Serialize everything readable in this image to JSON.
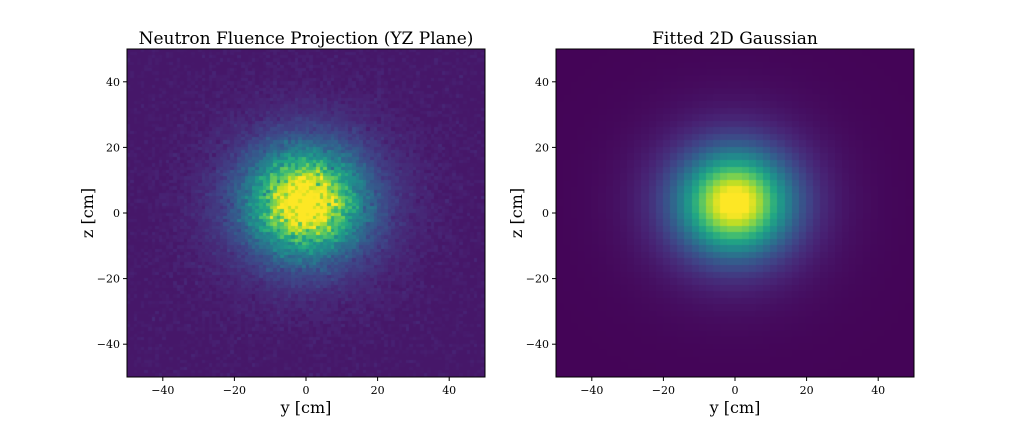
{
  "chart_data": [
    {
      "type": "heatmap",
      "title": "Neutron Fluence Projection (YZ Plane)",
      "xlabel": "y [cm]",
      "ylabel": "z [cm]",
      "xlim": [
        -50,
        50
      ],
      "ylim": [
        -50,
        50
      ],
      "xticks": [
        "−40",
        "−20",
        "0",
        "20",
        "40"
      ],
      "yticks": [
        "−40",
        "−20",
        "0",
        "20",
        "40"
      ],
      "grid": false,
      "colormap": "viridis",
      "bins": 100,
      "center": [
        0,
        3
      ],
      "sigma": [
        10,
        10
      ],
      "noisy": true
    },
    {
      "type": "heatmap",
      "title": "Fitted 2D Gaussian",
      "xlabel": "y [cm]",
      "ylabel": "z [cm]",
      "xlim": [
        -50,
        50
      ],
      "ylim": [
        -50,
        50
      ],
      "xticks": [
        "−40",
        "−20",
        "0",
        "20",
        "40"
      ],
      "yticks": [
        "−40",
        "−20",
        "0",
        "20",
        "40"
      ],
      "grid": false,
      "colormap": "viridis",
      "bins": 50,
      "center": [
        0,
        3
      ],
      "sigma": [
        10,
        10
      ],
      "noisy": false
    }
  ]
}
